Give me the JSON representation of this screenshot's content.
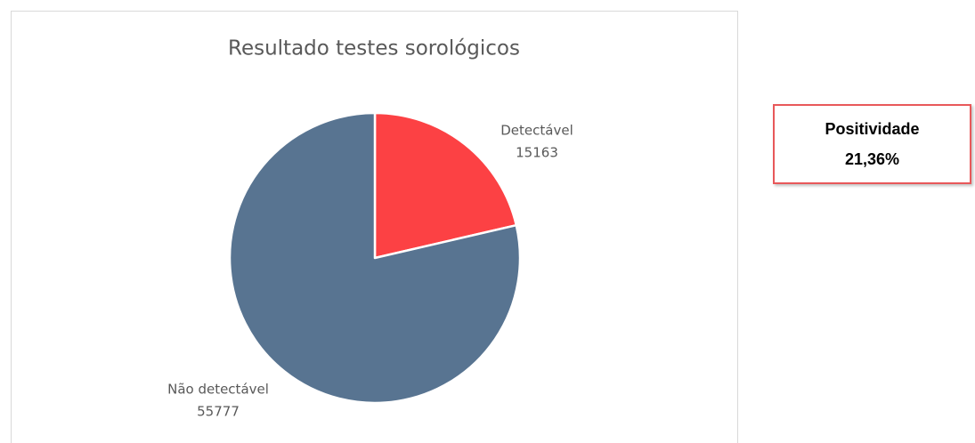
{
  "chart_data": {
    "type": "pie",
    "title": "Resultado testes sorológicos",
    "categories": [
      "Detectável",
      "Não detectável"
    ],
    "values": [
      15163,
      55777
    ],
    "colors": [
      "#fc4144",
      "#587491"
    ]
  },
  "callout": {
    "title": "Positividade",
    "value": "21,36%"
  }
}
